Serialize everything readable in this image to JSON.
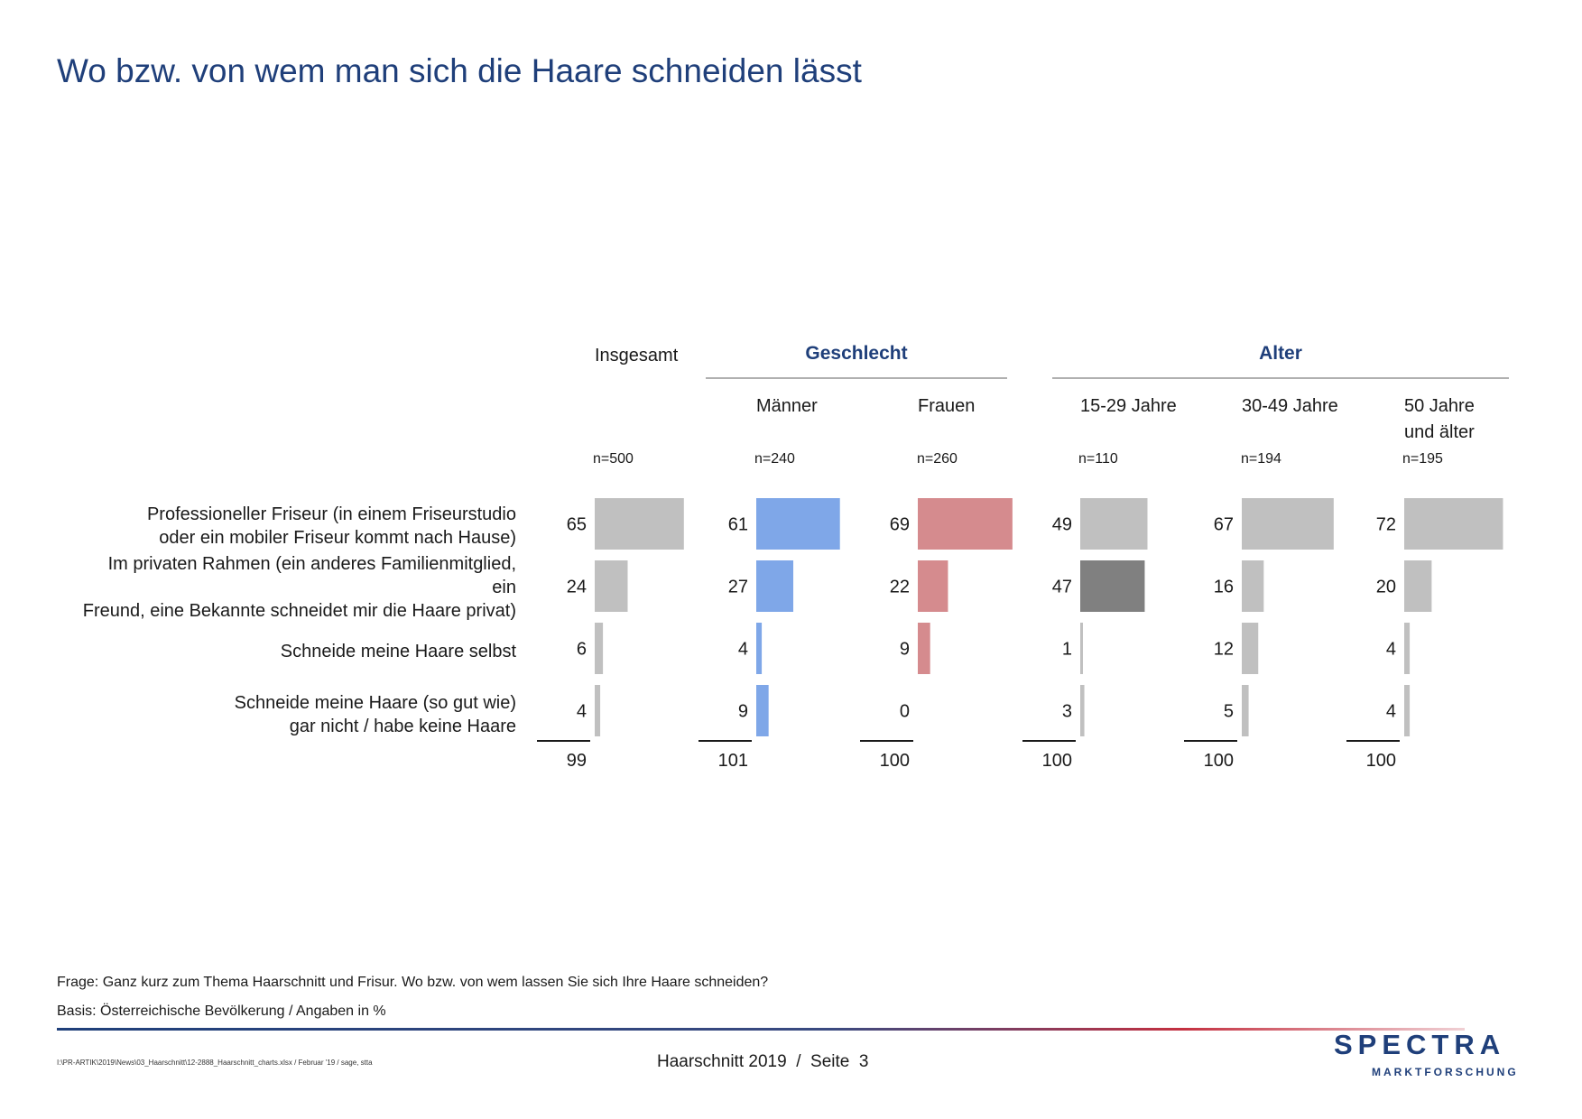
{
  "title": "Wo bzw. von wem man sich die Haare schneiden lässt",
  "groups": {
    "geschlecht": "Geschlecht",
    "alter": "Alter"
  },
  "columns": [
    {
      "label": "Insgesamt",
      "n": "n=500",
      "color": "#c0c0c0"
    },
    {
      "label": "Männer",
      "n": "n=240",
      "color": "#7fa7e8"
    },
    {
      "label": "Frauen",
      "n": "n=260",
      "color": "#d58b8e"
    },
    {
      "label": "15-29 Jahre",
      "n": "n=110",
      "color": "#c0c0c0"
    },
    {
      "label": "30-49 Jahre",
      "n": "n=194",
      "color": "#c0c0c0"
    },
    {
      "label": "50 Jahre\nund älter",
      "n": "n=195",
      "color": "#c0c0c0"
    }
  ],
  "rows": [
    "Professioneller Friseur (in einem Friseurstudio\noder ein mobiler Friseur kommt nach Hause)",
    "Im privaten Rahmen (ein anderes Familienmitglied,\nein\nFreund, eine Bekannte schneidet mir die Haare privat)",
    "Schneide meine Haare selbst",
    "Schneide meine Haare (so gut wie)\ngar nicht / habe keine Haare"
  ],
  "highlight_color": "#808080",
  "chart_data": {
    "type": "bar",
    "orientation": "horizontal",
    "unit": "%",
    "categories": [
      "Professioneller Friseur (in einem Friseurstudio oder ein mobiler Friseur kommt nach Hause)",
      "Im privaten Rahmen (ein anderes Familienmitglied, ein Freund, eine Bekannte schneidet mir die Haare privat)",
      "Schneide meine Haare selbst",
      "Schneide meine Haare (so gut wie) gar nicht / habe keine Haare"
    ],
    "series": [
      {
        "name": "Insgesamt",
        "values": [
          65,
          24,
          6,
          4
        ],
        "total": "99"
      },
      {
        "name": "Männer",
        "values": [
          61,
          27,
          4,
          9
        ],
        "total": "101"
      },
      {
        "name": "Frauen",
        "values": [
          69,
          22,
          9,
          0
        ],
        "total": "100"
      },
      {
        "name": "15-29 Jahre",
        "values": [
          49,
          47,
          1,
          3
        ],
        "total": "100",
        "highlight": [
          1
        ]
      },
      {
        "name": "30-49 Jahre",
        "values": [
          67,
          16,
          12,
          5
        ],
        "total": "100"
      },
      {
        "name": "50 Jahre und älter",
        "values": [
          72,
          20,
          4,
          4
        ],
        "total": "100"
      }
    ]
  },
  "question": "Frage: Ganz kurz zum Thema Haarschnitt und Frisur. Wo bzw. von wem lassen Sie sich Ihre Haare schneiden?",
  "basis": "Basis: Österreichische Bevölkerung / Angaben in %",
  "filepath": "I:\\PR-ARTIK\\2019\\News\\03_Haarschnitt\\12-2888_Haarschnitt_charts.xlsx / Februar '19 / sage, stta",
  "page_info": "Haarschnitt 2019  /  Seite  3",
  "logo": {
    "main": "SPECTRA",
    "sub": "MARKTFORSCHUNG"
  }
}
